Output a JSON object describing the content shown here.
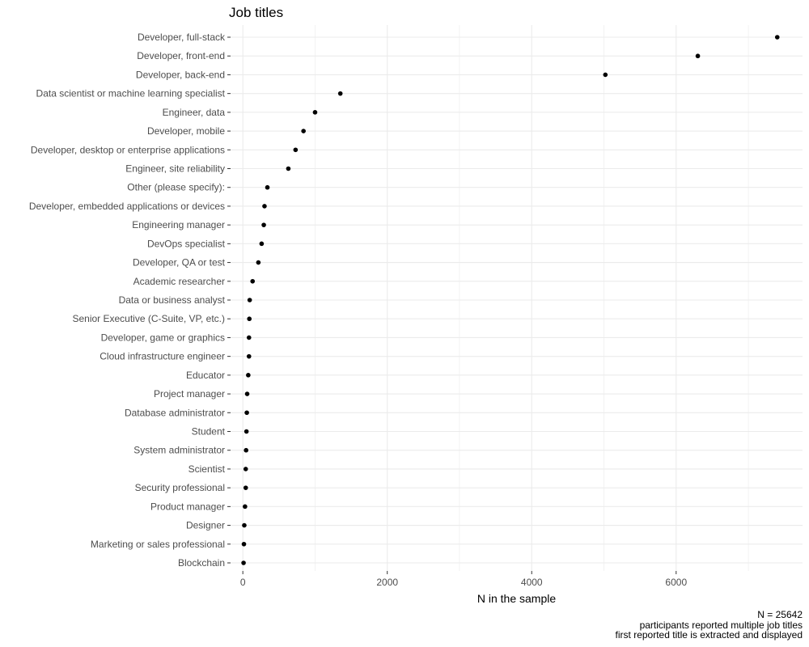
{
  "chart_data": {
    "type": "scatter",
    "title": "Job titles",
    "xlabel": "N in the sample",
    "ylabel": "",
    "xlim": [
      -170,
      7750
    ],
    "xticks": [
      0,
      2000,
      4000,
      6000
    ],
    "grid": true,
    "legend": "none",
    "point_color": "#000000",
    "grid_color": "#ebebeb",
    "caption": [
      "N = 25642",
      "participants reported multiple job titles",
      "first reported title is extracted and displayed"
    ],
    "categories": [
      "Developer, full-stack",
      "Developer, front-end",
      "Developer, back-end",
      "Data scientist or machine learning specialist",
      "Engineer, data",
      "Developer, mobile",
      "Developer, desktop or enterprise applications",
      "Engineer, site reliability",
      "Other (please specify):",
      "Developer, embedded applications or devices",
      "Engineering manager",
      "DevOps specialist",
      "Developer, QA or test",
      "Academic researcher",
      "Data or business analyst",
      "Senior Executive (C-Suite, VP, etc.)",
      "Developer, game or graphics",
      "Cloud infrastructure engineer",
      "Educator",
      "Project manager",
      "Database administrator",
      "Student",
      "System administrator",
      "Scientist",
      "Security professional",
      "Product manager",
      "Designer",
      "Marketing or sales professional",
      "Blockchain"
    ],
    "values": [
      7400,
      6300,
      5020,
      1350,
      1000,
      840,
      730,
      630,
      340,
      300,
      290,
      260,
      215,
      135,
      95,
      90,
      85,
      85,
      75,
      60,
      55,
      50,
      45,
      40,
      40,
      30,
      20,
      15,
      10
    ]
  }
}
